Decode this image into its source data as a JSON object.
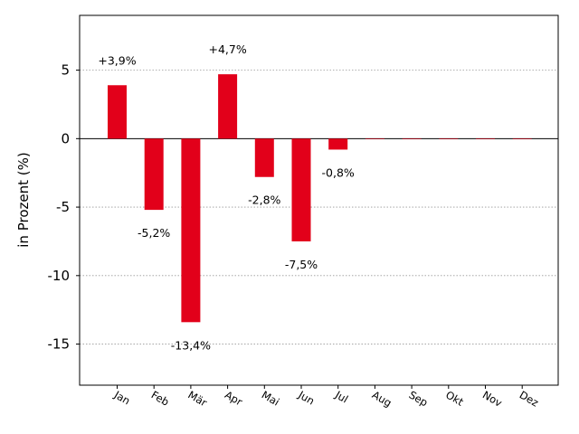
{
  "chart_data": {
    "type": "bar",
    "categories": [
      "Jan",
      "Feb",
      "Mär",
      "Apr",
      "Mai",
      "Jun",
      "Jul",
      "Aug",
      "Sep",
      "Okt",
      "Nov",
      "Dez"
    ],
    "values": [
      3.9,
      -5.2,
      -13.4,
      4.7,
      -2.8,
      -7.5,
      -0.8,
      0,
      0,
      0,
      0,
      0
    ],
    "data_labels": [
      "+3,9%",
      "-5,2%",
      "-13,4%",
      "+4,7%",
      "-2,8%",
      "-7,5%",
      "-0,8%",
      "",
      "",
      "",
      "",
      ""
    ],
    "ylabel": "in Prozent (%)",
    "xlabel": "",
    "title": "",
    "ylim": [
      -18,
      9
    ],
    "yticks": [
      5,
      0,
      -5,
      -10,
      -15
    ],
    "ytick_labels": [
      "5",
      "0",
      "-5",
      "-10",
      "-15"
    ],
    "grid": "horizontal dotted",
    "bar_color": "#e2001a",
    "zero_line": true
  }
}
